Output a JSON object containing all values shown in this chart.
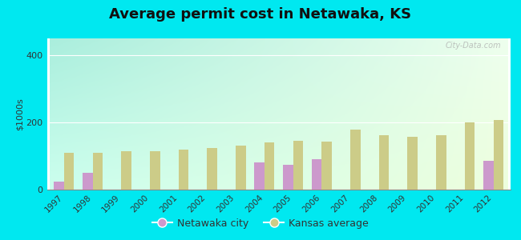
{
  "title": "Average permit cost in Netawaka, KS",
  "ylabel": "$1000s",
  "years": [
    1997,
    1998,
    1999,
    2000,
    2001,
    2002,
    2003,
    2004,
    2005,
    2006,
    2007,
    2008,
    2009,
    2010,
    2011,
    2012
  ],
  "netawaka": [
    25,
    50,
    0,
    0,
    0,
    0,
    0,
    80,
    75,
    90,
    0,
    0,
    0,
    0,
    0,
    85
  ],
  "kansas": [
    110,
    110,
    115,
    115,
    120,
    125,
    130,
    140,
    145,
    143,
    178,
    163,
    158,
    163,
    200,
    208
  ],
  "netawaka_color": "#cc99cc",
  "kansas_color": "#cccc88",
  "bg_tl": "#aaeedd",
  "bg_tr": "#eeffee",
  "bg_bl": "#ccffee",
  "bg_br": "#eeffdd",
  "outer_bg": "#00e8f0",
  "ylim": [
    0,
    450
  ],
  "yticks": [
    0,
    200,
    400
  ],
  "bar_width": 0.35,
  "title_fontsize": 13,
  "legend_netawaka": "Netawaka city",
  "legend_kansas": "Kansas average"
}
